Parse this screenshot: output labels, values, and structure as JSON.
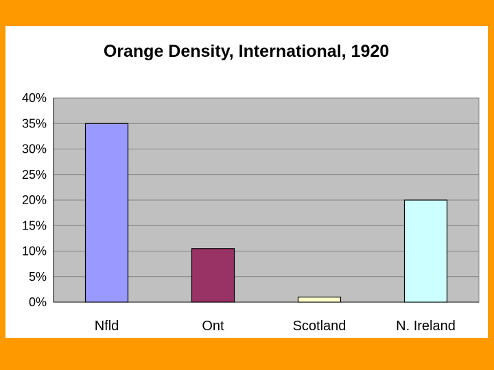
{
  "chart_data": {
    "type": "bar",
    "title": "Orange Density, International, 1920",
    "xlabel": "",
    "ylabel": "",
    "categories": [
      "Nfld",
      "Ont",
      "Scotland",
      "N. Ireland"
    ],
    "values": [
      0.35,
      0.105,
      0.01,
      0.2
    ],
    "bar_colors": [
      "#9999FF",
      "#993366",
      "#FFFFCC",
      "#CCFFFF"
    ],
    "ylim": [
      0,
      0.4
    ],
    "yticks": [
      0,
      0.05,
      0.1,
      0.15,
      0.2,
      0.25,
      0.3,
      0.35,
      0.4
    ],
    "ytick_labels": [
      "0%",
      "5%",
      "10%",
      "15%",
      "20%",
      "25%",
      "30%",
      "35%",
      "40%"
    ],
    "grid": true,
    "legend": "none",
    "plot_background": "#C0C0C0",
    "page_background": "#FF9900"
  }
}
